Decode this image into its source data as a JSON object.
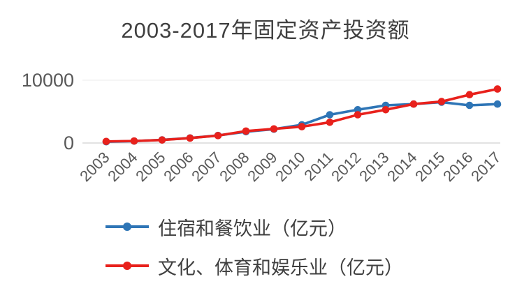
{
  "chart_data": {
    "type": "line",
    "title": "2003-2017年固定资产投资额",
    "categories": [
      "2003",
      "2004",
      "2005",
      "2006",
      "2007",
      "2008",
      "2009",
      "2010",
      "2011",
      "2012",
      "2013",
      "2014",
      "2015",
      "2016",
      "2017"
    ],
    "series": [
      {
        "name": "住宿和餐饮业（亿元）",
        "color": "#2e75b6",
        "values": [
          200,
          300,
          500,
          800,
          1200,
          1800,
          2200,
          2900,
          4500,
          5300,
          6000,
          6200,
          6500,
          6000,
          6200
        ]
      },
      {
        "name": "文化、体育和娱乐业（亿元）",
        "color": "#e8211c",
        "values": [
          250,
          320,
          480,
          780,
          1180,
          1900,
          2250,
          2600,
          3300,
          4500,
          5300,
          6200,
          6600,
          7700,
          8600
        ]
      }
    ],
    "xlabel": "",
    "ylabel": "",
    "ylim": [
      0,
      10000
    ],
    "yticks": [
      0,
      10000
    ],
    "grid": false,
    "legend_position": "bottom-left"
  }
}
